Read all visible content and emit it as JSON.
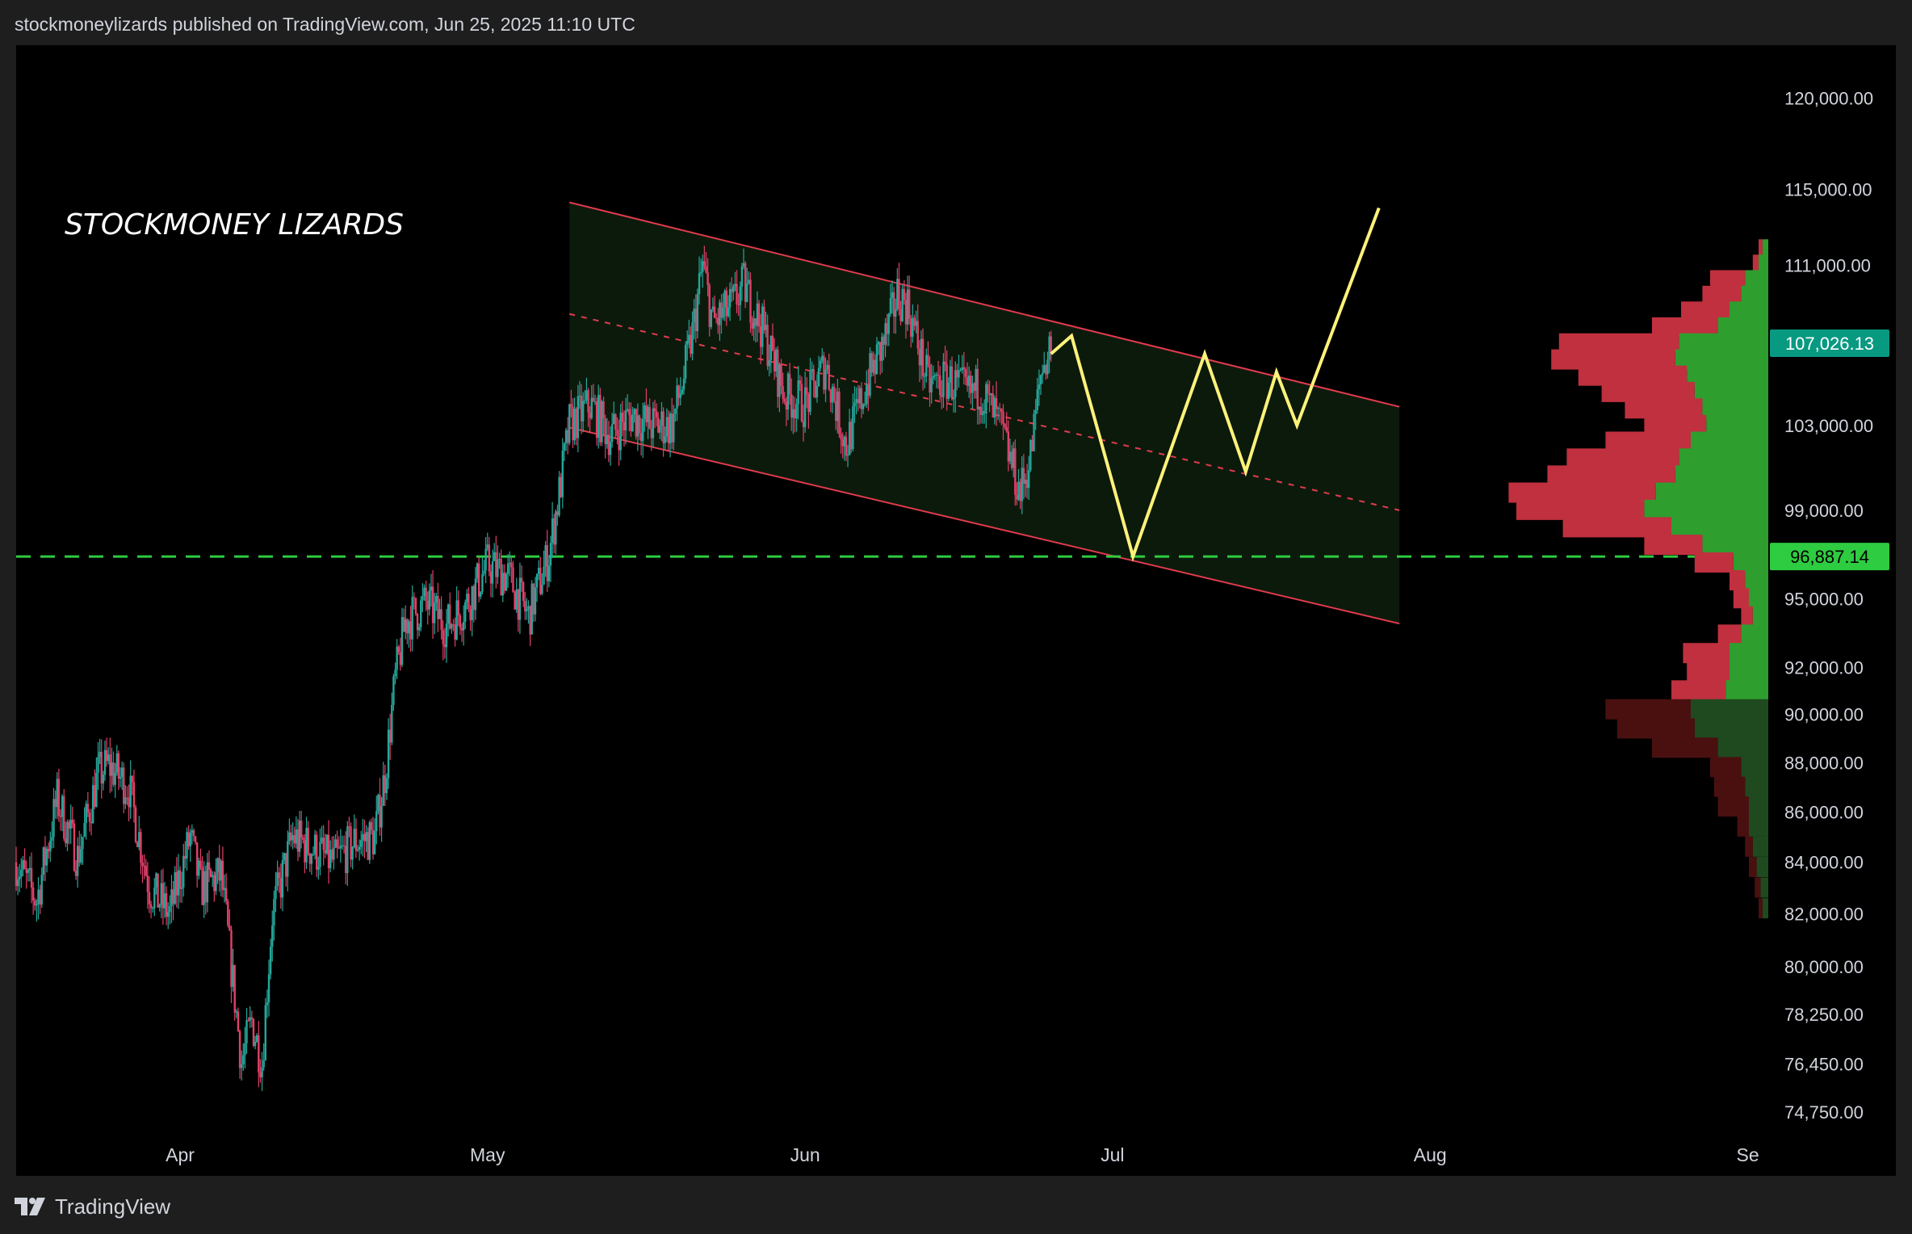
{
  "header": {
    "published_by": "stockmoneylizards published on TradingView.com, Jun 25, 2025 11:10 UTC"
  },
  "footer": {
    "logo_text": "TradingView",
    "logo_icon": "tradingview-logo-icon"
  },
  "colors": {
    "background": "#000000",
    "frame": "#1e1e1e",
    "up": "#26a69a",
    "down": "#e0406a",
    "channel_line": "#e23b4d",
    "channel_fill": "#0c1a0c",
    "projection": "#fff27a",
    "support_line": "#2ecc40",
    "last_price_badge": "#089981",
    "support_badge": "#2ecc40",
    "vp_buy": "#2e9e2e",
    "vp_sell": "#c0303f",
    "vp_buy_dim": "#1f4a1f",
    "vp_sell_dim": "#4a1010"
  },
  "chart_data": {
    "type": "candlestick",
    "symbol_note": "BTC price chart with descending channel and projected path",
    "watermark": "STOCKMONEY LIZARDS",
    "x_axis": {
      "ticks": [
        {
          "label": "Apr",
          "date": "2025-04-01"
        },
        {
          "label": "May",
          "date": "2025-05-01"
        },
        {
          "label": "Jun",
          "date": "2025-06-01"
        },
        {
          "label": "Jul",
          "date": "2025-07-01"
        },
        {
          "label": "Aug",
          "date": "2025-08-01"
        },
        {
          "label": "Se",
          "date": "2025-09-01"
        }
      ]
    },
    "y_axis": {
      "scale": "log",
      "range": [
        74000,
        123000
      ],
      "ticks": [
        {
          "label": "120,000.00",
          "value": 120000
        },
        {
          "label": "115,000.00",
          "value": 115000
        },
        {
          "label": "111,000.00",
          "value": 111000
        },
        {
          "label": "103,000.00",
          "value": 103000
        },
        {
          "label": "99,000.00",
          "value": 99000
        },
        {
          "label": "95,000.00",
          "value": 95000
        },
        {
          "label": "92,000.00",
          "value": 92000
        },
        {
          "label": "90,000.00",
          "value": 90000
        },
        {
          "label": "88,000.00",
          "value": 88000
        },
        {
          "label": "86,000.00",
          "value": 86000
        },
        {
          "label": "84,000.00",
          "value": 84000
        },
        {
          "label": "82,000.00",
          "value": 82000
        },
        {
          "label": "80,000.00",
          "value": 80000
        },
        {
          "label": "78,250.00",
          "value": 78250
        },
        {
          "label": "76,450.00",
          "value": 76450
        },
        {
          "label": "74,750.00",
          "value": 74750
        }
      ]
    },
    "price_path": [
      [
        "2025-03-16",
        84000
      ],
      [
        "2025-03-18",
        82500
      ],
      [
        "2025-03-20",
        86500
      ],
      [
        "2025-03-22",
        84200
      ],
      [
        "2025-03-24",
        87500
      ],
      [
        "2025-03-25",
        87900
      ],
      [
        "2025-03-27",
        87000
      ],
      [
        "2025-03-29",
        83000
      ],
      [
        "2025-03-31",
        82000
      ],
      [
        "2025-04-02",
        85000
      ],
      [
        "2025-04-03",
        83000
      ],
      [
        "2025-04-05",
        83500
      ],
      [
        "2025-04-07",
        76500
      ],
      [
        "2025-04-08",
        78000
      ],
      [
        "2025-04-09",
        76500
      ],
      [
        "2025-04-10",
        82000
      ],
      [
        "2025-04-12",
        85000
      ],
      [
        "2025-04-14",
        84500
      ],
      [
        "2025-04-16",
        84000
      ],
      [
        "2025-04-18",
        84800
      ],
      [
        "2025-04-20",
        85000
      ],
      [
        "2025-04-21",
        87500
      ],
      [
        "2025-04-22",
        91500
      ],
      [
        "2025-04-23",
        94000
      ],
      [
        "2025-04-25",
        94800
      ],
      [
        "2025-04-27",
        93800
      ],
      [
        "2025-04-29",
        94800
      ],
      [
        "2025-05-01",
        96500
      ],
      [
        "2025-05-03",
        96000
      ],
      [
        "2025-05-05",
        94200
      ],
      [
        "2025-05-07",
        97000
      ],
      [
        "2025-05-08",
        99800
      ],
      [
        "2025-05-09",
        103000
      ],
      [
        "2025-05-11",
        104000
      ],
      [
        "2025-05-13",
        102500
      ],
      [
        "2025-05-15",
        103500
      ],
      [
        "2025-05-17",
        103000
      ],
      [
        "2025-05-19",
        103000
      ],
      [
        "2025-05-20",
        105000
      ],
      [
        "2025-05-21",
        107500
      ],
      [
        "2025-05-22",
        111000
      ],
      [
        "2025-05-23",
        108000
      ],
      [
        "2025-05-25",
        109000
      ],
      [
        "2025-05-26",
        110000
      ],
      [
        "2025-05-28",
        107500
      ],
      [
        "2025-05-30",
        104500
      ],
      [
        "2025-06-01",
        104000
      ],
      [
        "2025-06-03",
        106000
      ],
      [
        "2025-06-05",
        102000
      ],
      [
        "2025-06-07",
        105000
      ],
      [
        "2025-06-09",
        107500
      ],
      [
        "2025-06-10",
        109500
      ],
      [
        "2025-06-11",
        109000
      ],
      [
        "2025-06-13",
        105000
      ],
      [
        "2025-06-15",
        105200
      ],
      [
        "2025-06-17",
        104500
      ],
      [
        "2025-06-18",
        104800
      ],
      [
        "2025-06-20",
        103000
      ],
      [
        "2025-06-22",
        99800
      ],
      [
        "2025-06-23",
        101500
      ],
      [
        "2025-06-24",
        105500
      ],
      [
        "2025-06-25",
        107026
      ]
    ],
    "channel": {
      "upper": [
        [
          "2025-05-09",
          114300
        ],
        [
          "2025-07-29",
          103900
        ]
      ],
      "lower": [
        [
          "2025-05-09",
          102900
        ],
        [
          "2025-07-29",
          93900
        ]
      ],
      "mid": [
        [
          "2025-05-09",
          108500
        ],
        [
          "2025-07-29",
          99000
        ]
      ],
      "x_range": [
        "2025-05-09",
        "2025-07-29"
      ]
    },
    "projection": [
      [
        "2025-06-25",
        106500
      ],
      [
        "2025-06-27",
        107400
      ],
      [
        "2025-07-03",
        96887
      ],
      [
        "2025-07-10",
        106500
      ],
      [
        "2025-07-14",
        100800
      ],
      [
        "2025-07-17",
        105600
      ],
      [
        "2025-07-19",
        103000
      ],
      [
        "2025-07-27",
        114000
      ]
    ],
    "horizontal_line": {
      "value": 96887.14,
      "style": "dashed"
    },
    "price_labels": [
      {
        "label": "107,026.13",
        "value": 107026.13,
        "kind": "last"
      },
      {
        "label": "96,887.14",
        "value": 96887.14,
        "kind": "support"
      }
    ],
    "volume_profile": [
      {
        "price": 111800,
        "buy": 3,
        "sell": 2
      },
      {
        "price": 111000,
        "buy": 5,
        "sell": 3
      },
      {
        "price": 110200,
        "buy": 12,
        "sell": 18
      },
      {
        "price": 109400,
        "buy": 14,
        "sell": 20
      },
      {
        "price": 108600,
        "buy": 20,
        "sell": 25
      },
      {
        "price": 107800,
        "buy": 26,
        "sell": 34
      },
      {
        "price": 107000,
        "buy": 46,
        "sell": 62
      },
      {
        "price": 106200,
        "buy": 48,
        "sell": 64
      },
      {
        "price": 105400,
        "buy": 42,
        "sell": 56
      },
      {
        "price": 104600,
        "buy": 38,
        "sell": 48
      },
      {
        "price": 103800,
        "buy": 34,
        "sell": 40
      },
      {
        "price": 103000,
        "buy": 32,
        "sell": 32
      },
      {
        "price": 102200,
        "buy": 40,
        "sell": 44
      },
      {
        "price": 101400,
        "buy": 46,
        "sell": 58
      },
      {
        "price": 100600,
        "buy": 48,
        "sell": 66
      },
      {
        "price": 99800,
        "buy": 58,
        "sell": 76
      },
      {
        "price": 99000,
        "buy": 64,
        "sell": 66
      },
      {
        "price": 98200,
        "buy": 50,
        "sell": 56
      },
      {
        "price": 97400,
        "buy": 34,
        "sell": 30
      },
      {
        "price": 96600,
        "buy": 18,
        "sell": 20
      },
      {
        "price": 95800,
        "buy": 12,
        "sell": 8
      },
      {
        "price": 95000,
        "buy": 10,
        "sell": 8
      },
      {
        "price": 94200,
        "buy": 8,
        "sell": 6
      },
      {
        "price": 93400,
        "buy": 14,
        "sell": 12
      },
      {
        "price": 92600,
        "buy": 20,
        "sell": 24
      },
      {
        "price": 91800,
        "buy": 20,
        "sell": 22
      },
      {
        "price": 91000,
        "buy": 22,
        "sell": 28
      },
      {
        "price": 90200,
        "buy": 40,
        "sell": 44,
        "dim": true
      },
      {
        "price": 89400,
        "buy": 38,
        "sell": 40,
        "dim": true
      },
      {
        "price": 88600,
        "buy": 26,
        "sell": 34,
        "dim": true
      },
      {
        "price": 87800,
        "buy": 14,
        "sell": 16,
        "dim": true
      },
      {
        "price": 87000,
        "buy": 12,
        "sell": 16,
        "dim": true
      },
      {
        "price": 86200,
        "buy": 10,
        "sell": 16,
        "dim": true
      },
      {
        "price": 85400,
        "buy": 10,
        "sell": 6,
        "dim": true
      },
      {
        "price": 84600,
        "buy": 8,
        "sell": 4,
        "dim": true
      },
      {
        "price": 83800,
        "buy": 6,
        "sell": 4,
        "dim": true
      },
      {
        "price": 83000,
        "buy": 4,
        "sell": 3,
        "dim": true
      },
      {
        "price": 82200,
        "buy": 3,
        "sell": 2,
        "dim": true
      }
    ]
  }
}
